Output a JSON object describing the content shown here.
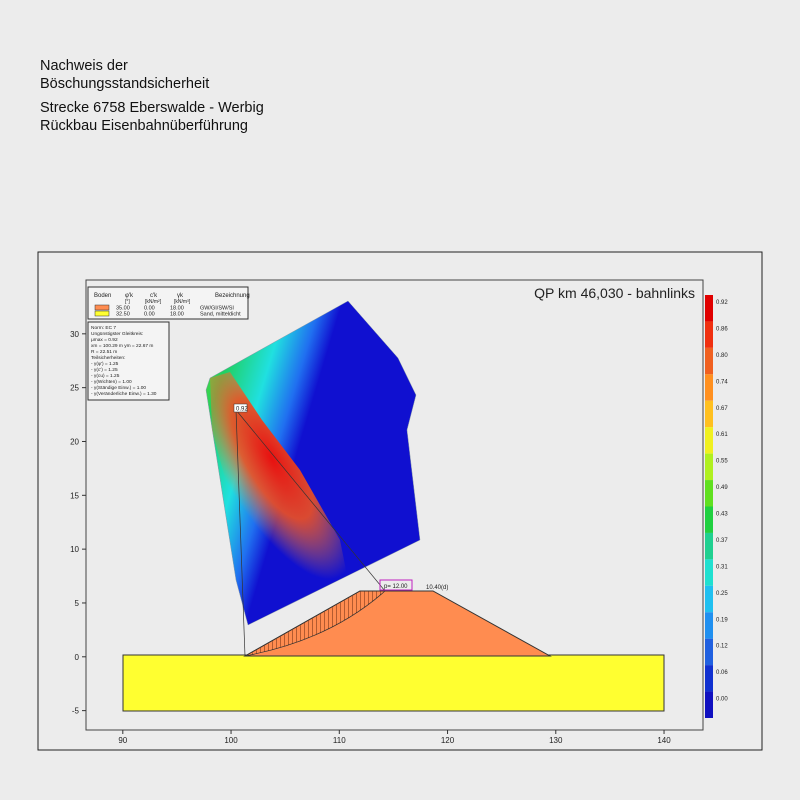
{
  "header": {
    "lines": [
      "Nachweis der",
      "Böschungsstandsicherheit",
      "Strecke 6758 Eberswalde - Werbig",
      "Rückbau Eisenbahnüberführung"
    ]
  },
  "plot": {
    "title": "QP km 46,030 - bahnlinks",
    "xlim": [
      86.6,
      143.6
    ],
    "ylim": [
      -6.8,
      35
    ],
    "xticks": [
      90,
      100,
      110,
      120,
      130,
      140
    ],
    "yticks": [
      -5,
      0,
      5,
      10,
      15,
      20,
      25,
      30
    ],
    "colorbar": [
      "0.92",
      "0.86",
      "0.80",
      "0.74",
      "0.67",
      "0.61",
      "0.55",
      "0.49",
      "0.43",
      "0.37",
      "0.31",
      "0.25",
      "0.19",
      "0.12",
      "0.06",
      "0.00"
    ],
    "min_label": "0.92",
    "load_label": "p= 12.00",
    "load_label2": "10.40(d)"
  },
  "legend": {
    "header": [
      "Boden",
      "φ'k",
      "c'k",
      "γk",
      "Bezeichnung"
    ],
    "units": [
      "[°]",
      "[kN/m²]",
      "[kN/m³]"
    ],
    "rows": [
      [
        "35.00",
        "0.00",
        "18.00",
        "GW/GI/SW/SI"
      ],
      [
        "32.50",
        "0.00",
        "18.00",
        "Sand, mitteldicht"
      ]
    ]
  },
  "info": [
    "Norm: EC 7",
    "Ungünstigster Gleitkreis:",
    "μmax = 0.92",
    "xm = 100.29 m   ym = 22.67 m",
    "R = 22.51 m",
    "Teilsicherheiten:",
    "- γ(φ') = 1.25",
    "- γ(c') = 1.25",
    "- γ(cu) = 1.25",
    "- γ(Wichten) = 1.00",
    "- γ(Ständige Einw.) = 1.00",
    "- γ(Veränderliche Einw.) = 1.30"
  ]
}
